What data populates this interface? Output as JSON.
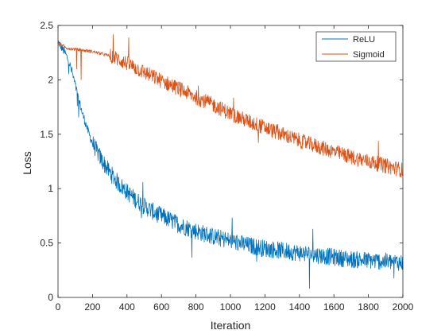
{
  "chart_data": {
    "type": "line",
    "xlabel": "Iteration",
    "ylabel": "Loss",
    "xlim": [
      0,
      2000
    ],
    "ylim": [
      0,
      2.5
    ],
    "xticks": [
      0,
      200,
      400,
      600,
      800,
      1000,
      1200,
      1400,
      1600,
      1800,
      2000
    ],
    "yticks": [
      0,
      0.5,
      1,
      1.5,
      2,
      2.5
    ],
    "xtick_labels": [
      "0",
      "200",
      "400",
      "600",
      "800",
      "1000",
      "1200",
      "1400",
      "1600",
      "1800",
      "2000"
    ],
    "ytick_labels": [
      "0",
      "0.5",
      "1",
      "1.5",
      "2",
      "2.5"
    ],
    "grid": false,
    "legend_position": "top-right",
    "series": [
      {
        "name": "ReLU",
        "color": "#0072BD",
        "x": [
          0,
          20,
          40,
          60,
          80,
          100,
          120,
          140,
          160,
          180,
          200,
          250,
          300,
          350,
          400,
          450,
          500,
          550,
          600,
          650,
          700,
          800,
          900,
          1000,
          1100,
          1200,
          1300,
          1400,
          1500,
          1600,
          1700,
          1800,
          1900,
          2000
        ],
        "y": [
          2.35,
          2.3,
          2.25,
          2.18,
          2.08,
          1.95,
          1.82,
          1.7,
          1.6,
          1.5,
          1.42,
          1.27,
          1.15,
          1.05,
          0.97,
          0.9,
          0.84,
          0.79,
          0.75,
          0.71,
          0.67,
          0.61,
          0.56,
          0.52,
          0.48,
          0.45,
          0.43,
          0.41,
          0.39,
          0.37,
          0.35,
          0.34,
          0.33,
          0.32
        ]
      },
      {
        "name": "Sigmoid",
        "color": "#D95319",
        "x": [
          0,
          20,
          40,
          60,
          100,
          150,
          200,
          250,
          300,
          350,
          400,
          450,
          500,
          600,
          700,
          800,
          900,
          1000,
          1100,
          1200,
          1300,
          1400,
          1500,
          1600,
          1700,
          1800,
          1900,
          2000
        ],
        "y": [
          2.34,
          2.32,
          2.3,
          2.29,
          2.28,
          2.27,
          2.26,
          2.24,
          2.22,
          2.19,
          2.15,
          2.11,
          2.07,
          1.99,
          1.92,
          1.84,
          1.77,
          1.69,
          1.62,
          1.56,
          1.5,
          1.44,
          1.39,
          1.34,
          1.29,
          1.25,
          1.21,
          1.17
        ]
      }
    ]
  }
}
